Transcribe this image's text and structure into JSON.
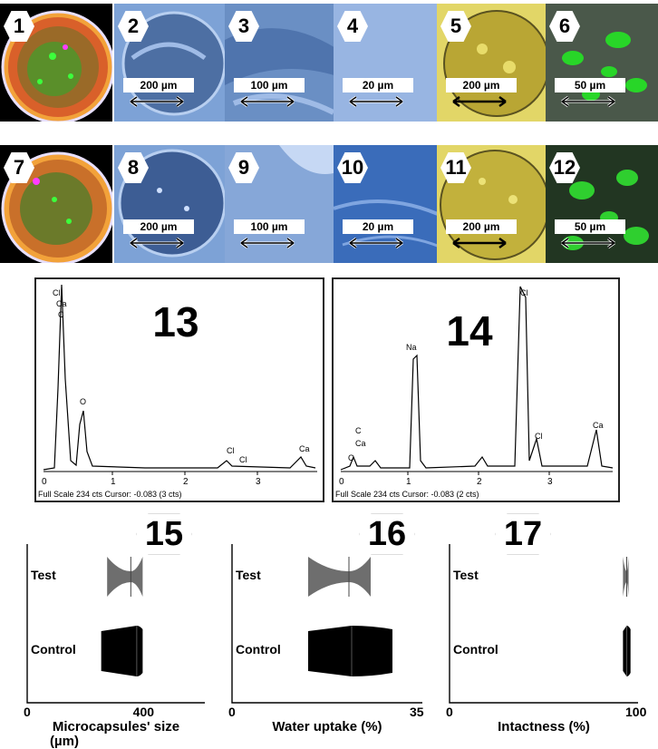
{
  "tiles": [
    {
      "label": "1"
    },
    {
      "label": "2",
      "scale": "200 µm"
    },
    {
      "label": "3",
      "scale": "100 µm"
    },
    {
      "label": "4",
      "scale": "20 µm"
    },
    {
      "label": "5",
      "scale": "200 µm"
    },
    {
      "label": "6",
      "scale": "50 µm"
    },
    {
      "label": "7"
    },
    {
      "label": "8",
      "scale": "200 µm"
    },
    {
      "label": "9",
      "scale": "100 µm"
    },
    {
      "label": "10",
      "scale": "20 µm"
    },
    {
      "label": "11",
      "scale": "200 µm"
    },
    {
      "label": "12",
      "scale": "50 µm"
    }
  ],
  "edx": [
    {
      "label": "13",
      "footer": "Full Scale 234 cts Cursor: -0.083  (3 cts)",
      "ticks": [
        "0",
        "1",
        "2",
        "3"
      ],
      "peaks": [
        "Cl",
        "Ca",
        "C",
        "O",
        "Cl",
        "Cl",
        "Ca"
      ]
    },
    {
      "label": "14",
      "footer": "Full Scale 234 cts Cursor: -0.083  (2 cts)",
      "ticks": [
        "0",
        "1",
        "2",
        "3"
      ],
      "peaks": [
        "Na",
        "Cl",
        "C",
        "Ca",
        "C",
        "Cl",
        "Ca"
      ]
    }
  ],
  "chart_data": [
    {
      "type": "violin",
      "label": "15",
      "categories": [
        "Test",
        "Control"
      ],
      "xlabel": "Microcapsules' size",
      "xunit": "(µm)",
      "xticks": [
        "0",
        "400"
      ],
      "xlim": [
        0,
        600
      ],
      "series": [
        {
          "values": [
            {
              "min": 270,
              "max": 390,
              "median": 350
            },
            {
              "min": 250,
              "max": 390,
              "median": 370
            }
          ]
        }
      ]
    },
    {
      "type": "violin",
      "label": "16",
      "categories": [
        "Test",
        "Control"
      ],
      "xlabel": "Water uptake (%)",
      "xticks": [
        "0",
        "35"
      ],
      "xlim": [
        0,
        35
      ],
      "series": [
        {
          "values": [
            {
              "min": 14,
              "max": 25.5,
              "median": 21.5
            },
            {
              "min": 14,
              "max": 29.5,
              "median": 22
            }
          ]
        }
      ]
    },
    {
      "type": "violin",
      "label": "17",
      "categories": [
        "Test",
        "Control"
      ],
      "xlabel": "Intactness (%)",
      "xticks": [
        "0",
        "100"
      ],
      "xlim": [
        0,
        100
      ],
      "series": [
        {
          "values": [
            {
              "min": 92,
              "max": 95,
              "median": 94
            },
            {
              "min": 92,
              "max": 96,
              "median": 94
            }
          ]
        }
      ]
    }
  ],
  "colors": {
    "test_fill": "#6e6e6e",
    "control_fill": "#000000",
    "sem_blue": "#5a7fb4",
    "optic_yellow": "#cdbd3c",
    "fluor_green": "#2fcf2f"
  }
}
